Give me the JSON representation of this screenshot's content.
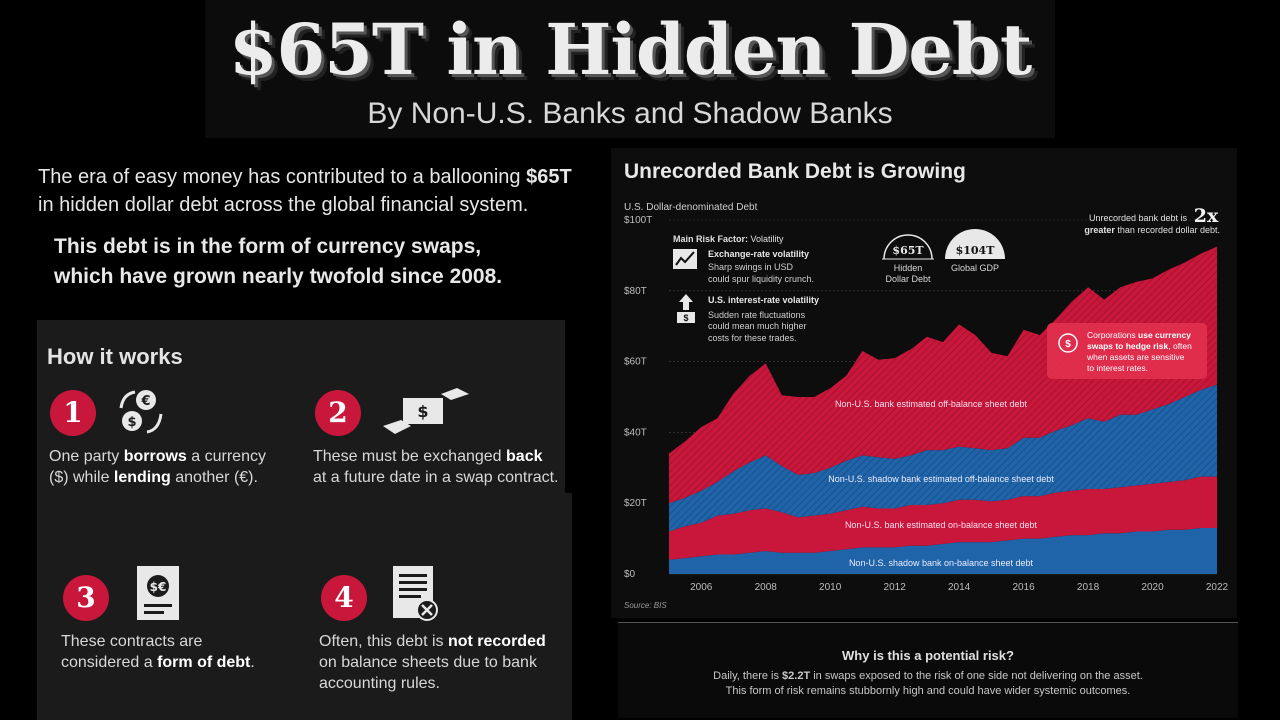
{
  "header": {
    "title": "$65T in Hidden Debt",
    "subtitle": "By Non-U.S. Banks and Shadow Banks"
  },
  "intro": {
    "text_a": "The era of easy money has contributed to a ballooning ",
    "text_highlight": "$65T",
    "text_b": "in hidden dollar debt across the global financial system.",
    "bold_a": "This debt is in the form of currency swaps,",
    "bold_b": "which have grown nearly twofold since 2008."
  },
  "how_it_works": {
    "title": "How it works",
    "steps": [
      {
        "num": "1",
        "icon": "currency-exchange-icon",
        "a": "One party ",
        "b": "borrows",
        "c": " a currency",
        "d": "($) while ",
        "e": "lending",
        "f": " another (€)."
      },
      {
        "num": "2",
        "icon": "money-handshake-icon",
        "a": "These must be exchanged ",
        "b": "back",
        "c": "at a future date in a swap contract."
      },
      {
        "num": "3",
        "icon": "contract-document-icon",
        "a": "These contracts are",
        "b": "considered a ",
        "c": "form of debt",
        "d": "."
      },
      {
        "num": "4",
        "icon": "rejected-document-icon",
        "a": "Often, this debt is ",
        "b": "not recorded",
        "c": "on balance sheets due to bank",
        "d": "accounting rules."
      }
    ]
  },
  "chart": {
    "title": "Unrecorded Bank Debt is Growing",
    "unit_label": "U.S. Dollar-denominated Debt",
    "source": "Source: BIS",
    "risk_factor_label": "Main Risk Factor:",
    "risk_factor_value": " Volatility",
    "risk1_title": "Exchange-rate volatility",
    "risk1_l1": "Sharp swings in USD",
    "risk1_l2": "could spur liquidity crunch.",
    "risk2_title": "U.S. interest-rate volatility",
    "risk2_l1": "Sudden rate fluctuations",
    "risk2_l2": "could mean much higher",
    "risk2_l3": "costs for these trades.",
    "badge1_value": "$65T",
    "badge1_l1": "Hidden",
    "badge1_l2": "Dollar Debt",
    "badge2_value": "$104T",
    "badge2_l1": "Global GDP",
    "callout_a": "Unrecorded bank debt is ",
    "callout_big": "2x",
    "callout_b_bold": "greater",
    "callout_b": " than recorded dollar debt.",
    "corp_l1_a": "Corporations ",
    "corp_l1_b": "use currency",
    "corp_l2": "swaps to hedge risk",
    "corp_l2_b": ", often",
    "corp_l3": "when assets are sensitive",
    "corp_l4": "to interest rates.",
    "layer_labels": [
      "Non-U.S. bank estimated off-balance sheet debt",
      "Non-U.S. shadow bank estimated off-balance sheet debt",
      "Non-U.S. bank estimated on-balance sheet debt",
      "Non-U.S. shadow bank on-balance sheet debt"
    ]
  },
  "risk": {
    "title": "Why is this a potential risk?",
    "line1_a": "Daily, there is ",
    "line1_bold": "$2.2T",
    "line1_b": " in swaps exposed to the risk of one side not delivering on the asset.",
    "line2": "This form of risk remains stubbornly high and could have wider systemic outcomes."
  },
  "colors": {
    "red": "#c8173a",
    "blue": "#1f63a8",
    "background": "#000000",
    "panel": "#1c1b1c"
  },
  "chart_data": {
    "type": "area",
    "stacked": true,
    "x": [
      2005,
      2005.5,
      2006,
      2006.5,
      2007,
      2007.5,
      2008,
      2008.5,
      2009,
      2009.5,
      2010,
      2010.5,
      2011,
      2011.5,
      2012,
      2012.5,
      2013,
      2013.5,
      2014,
      2014.5,
      2015,
      2015.5,
      2016,
      2016.5,
      2017,
      2017.5,
      2018,
      2018.5,
      2019,
      2019.5,
      2020,
      2020.5,
      2021,
      2021.5,
      2022
    ],
    "series": [
      {
        "name": "Non-U.S. shadow bank on-balance sheet debt",
        "color": "#1f63a8",
        "values": [
          4,
          4.5,
          5,
          5.5,
          5.5,
          6,
          6.5,
          6,
          6,
          6,
          6.5,
          7,
          7.5,
          7.5,
          7.5,
          8,
          8,
          8.5,
          9,
          9,
          9,
          9.5,
          10,
          10,
          10.5,
          11,
          11,
          11.5,
          11.5,
          12,
          12,
          12.5,
          12.5,
          13,
          13
        ]
      },
      {
        "name": "Non-U.S. bank estimated on-balance sheet debt",
        "color": "#c8173a",
        "values": [
          8,
          9,
          9.5,
          11,
          11.5,
          12,
          12,
          11.5,
          10,
          10.5,
          10.5,
          11,
          11.5,
          11,
          11,
          11.5,
          11.5,
          11.5,
          12,
          12,
          11.5,
          11.5,
          12,
          12,
          12.5,
          12.5,
          13,
          12.5,
          13,
          13,
          13.5,
          13.5,
          14,
          14.5,
          14.5
        ]
      },
      {
        "name": "Non-U.S. shadow bank estimated off-balance sheet debt",
        "color": "#1f63a8",
        "values": [
          8,
          8,
          9,
          9.5,
          12,
          13.5,
          15,
          13,
          12,
          12,
          13,
          14,
          14.5,
          14.5,
          14,
          14,
          15.5,
          15,
          15,
          14.5,
          14.5,
          14.5,
          16.5,
          16.5,
          17.5,
          18.5,
          20,
          19,
          20.5,
          20,
          21,
          22,
          23.5,
          24.5,
          26
        ]
      },
      {
        "name": "Non-U.S. bank estimated off-balance sheet debt",
        "color": "#c8173a",
        "values": [
          14,
          16,
          18,
          18,
          22,
          24.5,
          26,
          20,
          22,
          21.5,
          22.5,
          24,
          29.5,
          27.5,
          28.5,
          30,
          32,
          30.5,
          34.5,
          32,
          27.5,
          26,
          30.5,
          29,
          31.5,
          35,
          37,
          34.5,
          36,
          37.5,
          37,
          38,
          38,
          38.5,
          39
        ]
      }
    ],
    "xticks": [
      2006,
      2008,
      2010,
      2012,
      2014,
      2016,
      2018,
      2020,
      2022
    ],
    "yticks": [
      0,
      20,
      40,
      60,
      80,
      100
    ],
    "ytick_labels": [
      "$0",
      "$20T",
      "$40T",
      "$60T",
      "$80T",
      "$100T"
    ],
    "ylim": [
      0,
      100
    ],
    "xlim": [
      2005,
      2022
    ],
    "grid": true
  }
}
